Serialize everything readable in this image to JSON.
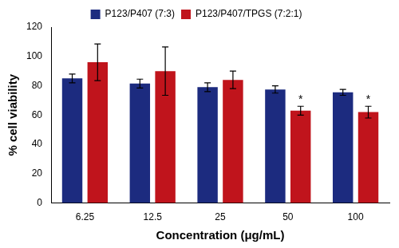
{
  "chart_data": {
    "type": "bar",
    "x_label": "Concentration (μg/mL)",
    "y_label": "% cell viability",
    "categories": [
      "6.25",
      "12.5",
      "25",
      "50",
      "100"
    ],
    "series": [
      {
        "name": "P123/P407 (7:3)",
        "color": "#1c2b7f",
        "values": [
          85,
          81.5,
          79,
          77.5,
          75.5
        ],
        "errors": [
          3,
          3,
          3,
          2.5,
          2
        ],
        "annotations": [
          null,
          null,
          null,
          null,
          null
        ]
      },
      {
        "name": "P123/P407/TPGS (7:2:1)",
        "color": "#c0141c",
        "values": [
          96,
          90,
          84,
          63,
          62
        ],
        "errors": [
          12.5,
          16.5,
          6,
          3,
          4
        ],
        "annotations": [
          null,
          null,
          null,
          "*",
          "*"
        ]
      }
    ],
    "ylim": [
      0,
      120
    ],
    "yticks": [
      0,
      20,
      40,
      60,
      80,
      100,
      120
    ],
    "grid": false,
    "legend": "top"
  }
}
